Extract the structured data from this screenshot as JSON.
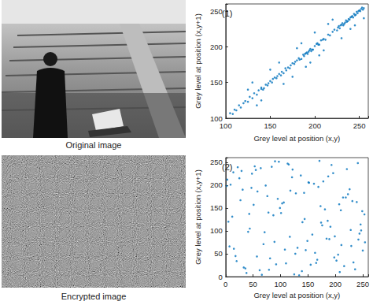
{
  "images": [
    {
      "caption": "Original image"
    },
    {
      "caption": "Encrypted image"
    }
  ],
  "chart_data": [
    {
      "type": "scatter",
      "annotation": "(1)",
      "color": "#0072bd",
      "x_label": "Grey level at position (x,y)",
      "y_label": "Grey level at position (x,y+1)",
      "xlim": [
        100,
        260
      ],
      "ylim": [
        100,
        260
      ],
      "xticks": [
        100,
        150,
        200,
        250
      ],
      "yticks": [
        100,
        150,
        200,
        250
      ],
      "x": [
        105,
        108,
        110,
        112,
        115,
        117,
        120,
        122,
        125,
        127,
        130,
        132,
        135,
        137,
        140,
        142,
        145,
        147,
        150,
        152,
        155,
        157,
        160,
        162,
        165,
        167,
        170,
        172,
        175,
        177,
        180,
        182,
        185,
        187,
        190,
        192,
        195,
        197,
        200,
        202,
        205,
        207,
        210,
        212,
        215,
        217,
        220,
        222,
        225,
        227,
        230,
        232,
        235,
        237,
        240,
        242,
        245,
        247,
        250,
        252,
        130,
        140,
        160,
        175,
        185,
        195,
        200,
        210,
        150,
        165,
        220,
        230,
        240,
        190,
        180,
        125,
        135,
        205,
        215,
        245,
        188,
        189,
        191,
        193,
        194,
        196,
        198,
        203,
        204,
        209,
        226,
        228,
        229,
        231,
        233,
        234,
        236,
        238,
        239,
        241,
        243,
        244,
        246,
        248,
        249,
        251,
        253,
        254,
        255,
        255,
        140,
        143,
        148,
        153,
        158,
        163,
        168,
        173,
        178,
        183
      ],
      "values": [
        107,
        106,
        112,
        111,
        118,
        115,
        121,
        124,
        123,
        130,
        128,
        135,
        133,
        139,
        141,
        140,
        147,
        146,
        152,
        150,
        157,
        156,
        162,
        160,
        163,
        170,
        171,
        170,
        177,
        176,
        181,
        184,
        183,
        189,
        191,
        190,
        197,
        196,
        201,
        204,
        203,
        209,
        211,
        210,
        217,
        216,
        221,
        224,
        223,
        229,
        231,
        230,
        237,
        236,
        241,
        243,
        244,
        249,
        251,
        253,
        150,
        125,
        178,
        158,
        205,
        178,
        220,
        195,
        168,
        148,
        238,
        212,
        225,
        172,
        198,
        140,
        118,
        188,
        232,
        230,
        187,
        190,
        192,
        193,
        195,
        194,
        196,
        205,
        203,
        210,
        227,
        226,
        230,
        233,
        232,
        234,
        235,
        239,
        238,
        242,
        241,
        246,
        245,
        247,
        250,
        250,
        255,
        252,
        254,
        240,
        143,
        142,
        149,
        155,
        159,
        165,
        167,
        174,
        179,
        182
      ]
    },
    {
      "type": "scatter",
      "annotation": "(2)",
      "color": "#0072bd",
      "x_label": "Grey level at position (x,y)",
      "y_label": "Grey level at position (x,y+1)",
      "xlim": [
        0,
        260
      ],
      "ylim": [
        0,
        260
      ],
      "xticks": [
        0,
        50,
        100,
        150,
        200,
        250
      ],
      "yticks": [
        0,
        50,
        100,
        150,
        200,
        250
      ],
      "x": [
        3,
        18,
        27,
        41,
        55,
        62,
        78,
        89,
        97,
        110,
        118,
        131,
        140,
        152,
        167,
        173,
        189,
        196,
        208,
        219,
        228,
        241,
        250,
        12,
        33,
        47,
        69,
        84,
        103,
        125,
        137,
        158,
        181,
        202,
        223,
        246,
        7,
        22,
        38,
        51,
        73,
        92,
        115,
        144,
        163,
        178,
        199,
        214,
        236,
        253,
        15,
        29,
        44,
        58,
        81,
        99,
        121,
        134,
        149,
        171,
        186,
        205,
        231,
        244,
        9,
        36,
        64,
        87,
        108,
        128,
        155,
        176,
        193,
        211,
        226,
        249,
        20,
        48,
        71,
        95,
        113,
        139,
        161,
        184,
        207,
        233,
        5,
        25,
        57,
        76,
        101,
        122,
        146,
        169,
        191,
        216,
        239,
        254,
        14,
        43,
        66,
        90,
        117,
        143,
        165,
        187,
        210,
        229,
        247,
        31,
        53,
        79,
        106,
        127,
        151,
        174,
        198,
        221,
        242,
        2
      ],
      "values": [
        212,
        45,
        167,
        98,
        233,
        14,
        140,
        76,
        251,
        29,
        188,
        63,
        119,
        205,
        37,
        154,
        82,
        226,
        10,
        173,
        102,
        248,
        57,
        131,
        20,
        194,
        71,
        240,
        160,
        5,
        221,
        92,
        147,
        35,
        180,
        114,
        66,
        239,
        8,
        157,
        199,
        27,
        245,
        126,
        52,
        208,
        88,
        173,
        16,
        136,
        61,
        231,
        105,
        186,
        40,
        150,
        217,
        3,
        78,
        253,
        122,
        48,
        165,
        94,
        201,
        18,
        237,
        134,
        59,
        182,
        26,
        112,
        244,
        69,
        191,
        143,
        34,
        225,
        97,
        170,
        247,
        12,
        203,
        83,
        158,
        31,
        120,
        215,
        44,
        176,
        139,
        234,
        58,
        196,
        109,
        23,
        163,
        75,
        228,
        137,
        4,
        252,
        87,
        183,
        30,
        219,
        145,
        67,
        101,
        190,
        241,
        15,
        162,
        50,
        206,
        118,
        42,
        235,
        81,
        198
      ]
    }
  ]
}
